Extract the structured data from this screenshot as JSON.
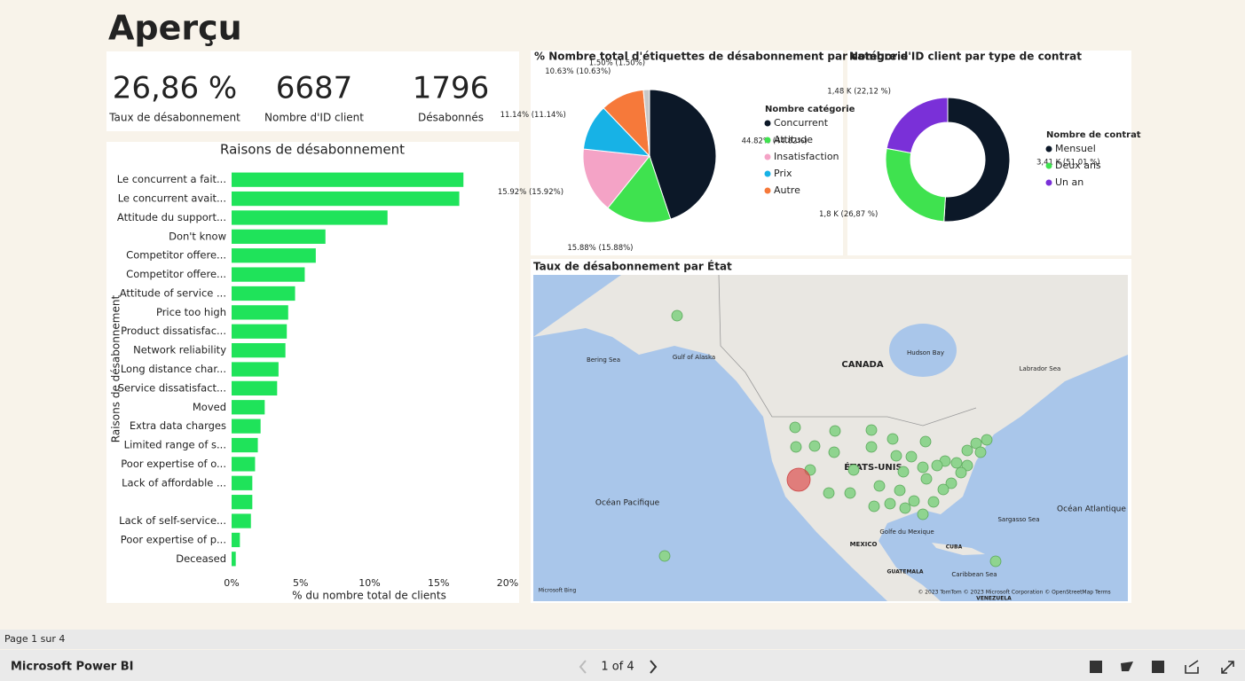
{
  "title": "Aperçu",
  "kpis": [
    {
      "value": "26,86 %",
      "label": "Taux de désabonnement"
    },
    {
      "value": "6687",
      "label": "Nombre d'ID client"
    },
    {
      "value": "1796",
      "label": "Désabonnés"
    }
  ],
  "chart_data": [
    {
      "type": "bar",
      "orientation": "horizontal",
      "title": "Raisons de désabonnement",
      "xlabel": "% du nombre total de clients",
      "ylabel": "Raisons de désabonnement",
      "categories": [
        "Le concurrent a fait...",
        "Le concurrent avait...",
        "Attitude du support...",
        "Don't know",
        "Competitor offere...",
        "Competitor offere...",
        "Attitude of service ...",
        "Price too high",
        "Product dissatisfac...",
        "Network reliability",
        "Long distance char...",
        "Service dissatisfact...",
        "Moved",
        "Extra data charges",
        "Limited range of s...",
        "Poor expertise of o...",
        "Lack of affordable ...",
        null,
        "Lack of self-service...",
        "Poor expertise of p...",
        "Deceased"
      ],
      "values": [
        16.8,
        16.5,
        11.3,
        6.8,
        6.1,
        5.3,
        4.6,
        4.1,
        4.0,
        3.9,
        3.4,
        3.3,
        2.4,
        2.1,
        1.9,
        1.7,
        1.5,
        1.5,
        1.4,
        0.6,
        0.3
      ],
      "color": "#1fe35a",
      "xlim": [
        0,
        20
      ],
      "xticks": [
        {
          "value": 0,
          "label": "0%"
        },
        {
          "value": 5,
          "label": "5%"
        },
        {
          "value": 10,
          "label": "10%"
        },
        {
          "value": 15,
          "label": "15%"
        },
        {
          "value": 20,
          "label": "20%"
        }
      ]
    },
    {
      "type": "pie",
      "title": "% Nombre total d'étiquettes de désabonnement par catégorie",
      "legend_title": "Nombre catégorie",
      "categories": [
        "Concurrent",
        "Attitude",
        "Insatisfaction",
        "Prix",
        "Autre",
        null
      ],
      "values": [
        44.82,
        15.88,
        15.92,
        11.14,
        10.63,
        1.5
      ],
      "value_labels": [
        "44.82% (44.82%)",
        "15.88% (15.88%)",
        "15.92% (15.92%)",
        "11.14% (11.14%)",
        "10.63% (10.63%)",
        "1.50% (1.50%)"
      ],
      "colors": [
        "#0c1828",
        "#3fe24f",
        "#f4a3c6",
        "#17b2e6",
        "#f6793a",
        "#c8c8c8"
      ]
    },
    {
      "type": "donut",
      "title": "Nombre d'ID client par type de contrat",
      "legend_title": "Nombre de contrat",
      "categories": [
        "Mensuel",
        "Deux ans",
        "Un an"
      ],
      "values": [
        3410,
        1800,
        1480
      ],
      "value_labels": [
        "3,41 K (51,01 %)",
        "1,8 K (26,87 %)",
        "1,48 K (22,12 %)"
      ],
      "colors": [
        "#0c1828",
        "#3fe24f",
        "#7a30d8"
      ]
    }
  ],
  "map": {
    "title": "Taux de désabonnement par État",
    "labels": [
      "Bering Sea",
      "Gulf of Alaska",
      "CANADA",
      "Hudson Bay",
      "Labrador Sea",
      "ÉTATS-UNIS",
      "Océan Pacifique",
      "Océan Atlantique",
      "Golfe du Mexique",
      "Sargasso Sea",
      "MEXICO",
      "CUBA",
      "Caribbean Sea",
      "GUATEMALA",
      "VENEZUELA",
      "Microsoft Bing",
      "© 2023 TomTom © 2023 Microsoft Corporation © OpenStreetMap Terms"
    ]
  },
  "footer": {
    "page": "Page 1 sur 4",
    "brand": "Microsoft Power BI",
    "pager": "1 of 4"
  }
}
